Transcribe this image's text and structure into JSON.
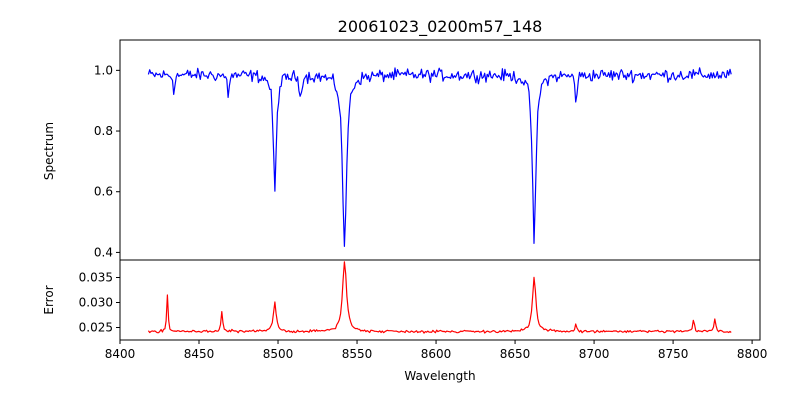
{
  "chart_data": [
    {
      "type": "line",
      "title": "20061023_0200m57_148",
      "ylabel": "Spectrum",
      "xlabel": "",
      "xlim": [
        8400,
        8805
      ],
      "ylim": [
        0.375,
        1.1
      ],
      "yticks": [
        0.4,
        0.6,
        0.8,
        1.0
      ],
      "ytick_labels": [
        "0.4",
        "0.6",
        "0.8",
        "1.0"
      ],
      "color": "#0000ff",
      "grid": false,
      "legend": "none",
      "x_range": [
        8418,
        8787
      ],
      "continuum": 0.985,
      "noise": 0.03,
      "absorption_lines": [
        {
          "center": 8498.0,
          "min": 0.59,
          "width": 1.1
        },
        {
          "center": 8542.1,
          "min": 0.41,
          "width": 1.5
        },
        {
          "center": 8662.1,
          "min": 0.43,
          "width": 1.3
        },
        {
          "center": 8688.6,
          "min": 0.89,
          "width": 0.6
        },
        {
          "center": 8514.1,
          "min": 0.91,
          "width": 0.7
        },
        {
          "center": 8468.4,
          "min": 0.92,
          "width": 0.6
        },
        {
          "center": 8434.0,
          "min": 0.93,
          "width": 0.5
        }
      ]
    },
    {
      "type": "line",
      "title": "",
      "ylabel": "Error",
      "xlabel": "Wavelength",
      "xlim": [
        8400,
        8805
      ],
      "ylim": [
        0.0225,
        0.0385
      ],
      "xticks": [
        8400,
        8450,
        8500,
        8550,
        8600,
        8650,
        8700,
        8750,
        8800
      ],
      "xtick_labels": [
        "8400",
        "8450",
        "8500",
        "8550",
        "8600",
        "8650",
        "8700",
        "8750",
        "8800"
      ],
      "yticks": [
        0.025,
        0.03,
        0.035
      ],
      "ytick_labels": [
        "0.025",
        "0.030",
        "0.035"
      ],
      "color": "#ff0000",
      "grid": false,
      "legend": "none",
      "x_range": [
        8418,
        8787
      ],
      "baseline": 0.0242,
      "noise": 0.0004,
      "emission_peaks": [
        {
          "center": 8430.0,
          "max": 0.0315,
          "width": 0.5
        },
        {
          "center": 8464.5,
          "max": 0.0282,
          "width": 0.6
        },
        {
          "center": 8498.0,
          "max": 0.0302,
          "width": 1.0
        },
        {
          "center": 8542.1,
          "max": 0.0382,
          "width": 1.5
        },
        {
          "center": 8662.1,
          "max": 0.0348,
          "width": 1.3
        },
        {
          "center": 8688.6,
          "max": 0.0256,
          "width": 0.6
        },
        {
          "center": 8763.0,
          "max": 0.0264,
          "width": 0.6
        },
        {
          "center": 8776.5,
          "max": 0.0268,
          "width": 0.6
        }
      ]
    }
  ]
}
